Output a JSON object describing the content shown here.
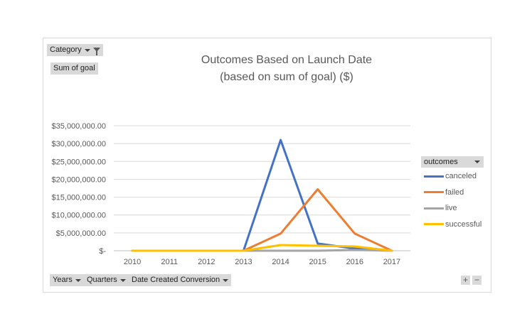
{
  "pivot": {
    "category_label": "Category",
    "value_label": "Sum of goal",
    "axis_fields": [
      "Years",
      "Quarters",
      "Date Created Conversion"
    ],
    "legend_field": "outcomes",
    "zoom_in": "+",
    "zoom_out": "−"
  },
  "chart_data": {
    "type": "line",
    "title": "Outcomes Based on Launch Date",
    "subtitle": "(based on sum of goal) ($)",
    "xlabel": "",
    "ylabel": "",
    "x": [
      "2010",
      "2011",
      "2012",
      "2013",
      "2014",
      "2015",
      "2016",
      "2017"
    ],
    "ylim": [
      0,
      35000000
    ],
    "yticks": [
      0,
      5000000,
      10000000,
      15000000,
      20000000,
      25000000,
      30000000,
      35000000
    ],
    "ytick_labels": [
      "$-",
      "$5,000,000.00",
      "$10,000,000.00",
      "$15,000,000.00",
      "$20,000,000.00",
      "$25,000,000.00",
      "$30,000,000.00",
      "$35,000,000.00"
    ],
    "grid": true,
    "legend_position": "right",
    "series": [
      {
        "name": "canceled",
        "color": "#4472c4",
        "values": [
          0,
          0,
          0,
          0,
          31000000,
          2000000,
          600000,
          0
        ]
      },
      {
        "name": "failed",
        "color": "#ed7d31",
        "values": [
          0,
          0,
          0,
          0,
          4800000,
          17200000,
          4800000,
          0
        ]
      },
      {
        "name": "live",
        "color": "#a5a5a5",
        "values": [
          0,
          0,
          0,
          0,
          0,
          0,
          200000,
          0
        ]
      },
      {
        "name": "successful",
        "color": "#ffc000",
        "values": [
          0,
          0,
          0,
          0,
          1600000,
          1400000,
          1200000,
          0
        ]
      }
    ]
  }
}
